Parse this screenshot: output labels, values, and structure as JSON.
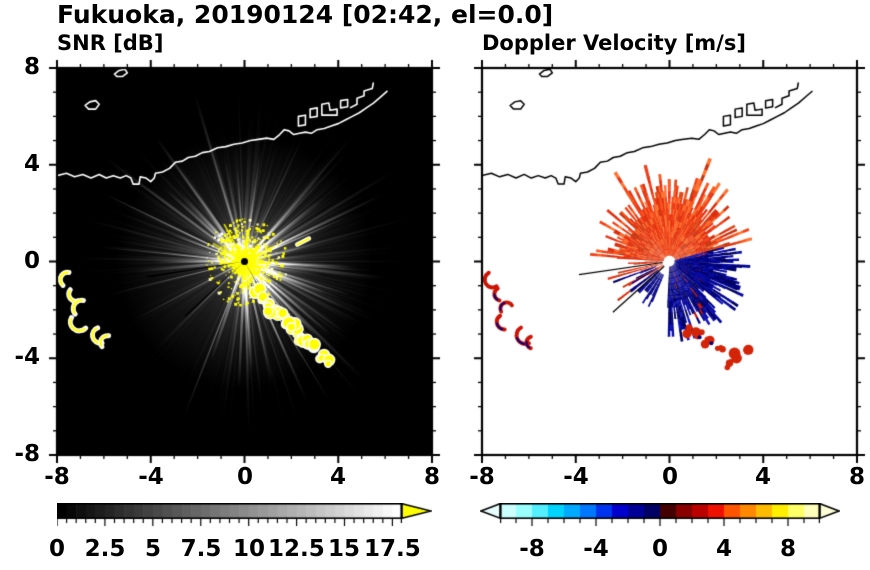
{
  "title": "Fukuoka, 20190124 [02:42, el=0.0]",
  "chart_data": [
    {
      "type": "heatmap",
      "title": "SNR [dB]",
      "xlim": [
        -8,
        8
      ],
      "ylim": [
        -8,
        8
      ],
      "xticks": [
        -8,
        -4,
        0,
        4,
        8
      ],
      "yticks": [
        8,
        4,
        0,
        -4,
        -8
      ],
      "background": "#000000",
      "colorbar": {
        "range": [
          0,
          18
        ],
        "ticks": [
          0,
          2.5,
          5,
          7.5,
          10,
          12.5,
          15,
          17.5
        ],
        "start_color": "#000000",
        "end_color": "#ffffff",
        "overflow_color": "#ffff00"
      },
      "features": {
        "radar_center": [
          0,
          0
        ],
        "glow_radius": 5.5,
        "spokes": {
          "count": 360,
          "bright_count": 70,
          "color": "#ffffff"
        },
        "core": {
          "radius": 1.8,
          "color": "#ffff00",
          "dot_count": 900
        },
        "shadow_rays": [
          {
            "az": 188,
            "len": 4.2
          },
          {
            "az": 221,
            "len": 3.4
          },
          {
            "az": 300,
            "len": 3.2
          }
        ],
        "arc_echoes": [
          [
            0.55,
            -1.15
          ],
          [
            0.85,
            -1.5
          ],
          [
            1.05,
            -1.75
          ],
          [
            1.35,
            -2.05
          ],
          [
            1.6,
            -2.2
          ],
          [
            1.9,
            -2.45
          ],
          [
            2.15,
            -2.95
          ],
          [
            2.45,
            -3.15
          ],
          [
            2.7,
            -3.3
          ],
          [
            3.0,
            -3.55
          ],
          [
            3.25,
            -3.9
          ],
          [
            3.45,
            -4.15
          ],
          [
            2.0,
            -2.7
          ],
          [
            1.15,
            -2.0
          ]
        ],
        "west_echoes": [
          [
            -7.55,
            -0.75
          ],
          [
            -7.2,
            -1.35
          ],
          [
            -6.95,
            -1.95
          ],
          [
            -7.05,
            -2.5
          ],
          [
            -6.15,
            -3.05
          ],
          [
            -5.85,
            -3.35
          ]
        ],
        "spur": [
          [
            2.25,
            0.7
          ],
          [
            2.75,
            0.95
          ]
        ]
      }
    },
    {
      "type": "heatmap",
      "title": "Doppler Velocity [m/s]",
      "xlim": [
        -8,
        8
      ],
      "ylim": [
        -8,
        8
      ],
      "xticks": [
        -8,
        -4,
        0,
        4,
        8
      ],
      "yticks": [
        8,
        4,
        0,
        -4,
        -8
      ],
      "background": "#ffffff",
      "colorbar": {
        "range": [
          -10,
          10
        ],
        "ticks": [
          -8,
          -4,
          0,
          4,
          8
        ],
        "colors": [
          "#ccffff",
          "#99ffff",
          "#55eeff",
          "#00d4ff",
          "#00aaff",
          "#0077ff",
          "#0033ee",
          "#0000cc",
          "#000099",
          "#000066",
          "#440000",
          "#880000",
          "#bb0000",
          "#ee1100",
          "#ff5500",
          "#ff8800",
          "#ffbb00",
          "#ffee00",
          "#ffff66",
          "#ffffbb"
        ],
        "under_color": "#e8ffff",
        "over_color": "#ffffd8"
      },
      "features": {
        "regions": [
          {
            "name": "outbound-red",
            "az": [
              15,
              175
            ],
            "r": [
              0.25,
              1.7
            ],
            "jitter": 1.8,
            "palette": [
              "#e63212",
              "#f14019",
              "#d92d0c",
              "#fa5a22",
              "#e0481a",
              "#c73511",
              "#ff7433"
            ]
          },
          {
            "name": "outbound-red-spikes",
            "az": [
              55,
              125
            ],
            "r": [
              0.25,
              2.3
            ],
            "jitter": 1.4,
            "sparse": 0.55,
            "palette": [
              "#e63212",
              "#f14019",
              "#fa5a22",
              "#ff7433"
            ]
          },
          {
            "name": "outbound-red-sw",
            "az": [
              176,
              216
            ],
            "r": [
              0.3,
              0.9
            ],
            "jitter": 1.9,
            "sparse": 0.4,
            "palette": [
              "#e63212",
              "#d92d0c",
              "#c73511"
            ]
          },
          {
            "name": "inbound-navy",
            "az": [
              -92,
              14
            ],
            "r": [
              0.2,
              1.5
            ],
            "jitter": 1.7,
            "palette": [
              "#000082",
              "#000899",
              "#0a0aa6",
              "#000060",
              "#1616b8",
              "#00004e"
            ],
            "speckle": "#c81400",
            "speckle_p": 0.035
          },
          {
            "name": "inbound-navy-east",
            "az": [
              -45,
              10
            ],
            "r": [
              0.3,
              2.2
            ],
            "jitter": 1.1,
            "sparse": 0.6,
            "palette": [
              "#000082",
              "#000899",
              "#0a0aa6",
              "#000060"
            ]
          },
          {
            "name": "inbound-navy-sw",
            "az": [
              198,
              246
            ],
            "r": [
              0.6,
              1.3
            ],
            "jitter": 0.8,
            "sparse": 0.6,
            "palette": [
              "#000082",
              "#000099",
              "#000060"
            ]
          }
        ],
        "fringe_blobs": [
          [
            1.7,
            -3.3
          ],
          [
            2.2,
            -3.7
          ],
          [
            2.6,
            -4.25
          ],
          [
            1.2,
            -3.05
          ],
          [
            2.9,
            -3.9
          ],
          [
            3.2,
            -3.5
          ],
          [
            0.8,
            -2.9
          ]
        ],
        "shadow_rays": [
          {
            "az": 188,
            "len": 3.9
          },
          {
            "az": 221,
            "len": 3.2
          }
        ],
        "west_echoes": [
          [
            -7.55,
            -0.75
          ],
          [
            -7.2,
            -1.35
          ],
          [
            -6.95,
            -1.95
          ],
          [
            -7.05,
            -2.5
          ],
          [
            -6.15,
            -3.05
          ],
          [
            -5.85,
            -3.35
          ]
        ],
        "center_color": "#ffffff"
      }
    }
  ],
  "coastline": {
    "color_on_dark": "#ffffff",
    "color_on_light": "#000000",
    "main": [
      [
        -8,
        3.55
      ],
      [
        -7.6,
        3.65
      ],
      [
        -7.25,
        3.5
      ],
      [
        -6.9,
        3.6
      ],
      [
        -6.55,
        3.45
      ],
      [
        -6.2,
        3.6
      ],
      [
        -5.9,
        3.45
      ],
      [
        -5.6,
        3.55
      ],
      [
        -5.3,
        3.45
      ],
      [
        -5.05,
        3.55
      ],
      [
        -4.85,
        3.45
      ],
      [
        -4.75,
        3.2
      ],
      [
        -4.5,
        3.2
      ],
      [
        -4.45,
        3.5
      ],
      [
        -4.2,
        3.45
      ],
      [
        -4.0,
        3.3
      ],
      [
        -3.85,
        3.45
      ],
      [
        -3.8,
        3.65
      ],
      [
        -3.5,
        3.7
      ],
      [
        -3.2,
        3.85
      ],
      [
        -2.95,
        4.1
      ],
      [
        -2.65,
        4.15
      ],
      [
        -2.4,
        4.3
      ],
      [
        -2.1,
        4.35
      ],
      [
        -1.8,
        4.5
      ],
      [
        -1.5,
        4.55
      ],
      [
        -1.15,
        4.7
      ],
      [
        -0.8,
        4.75
      ],
      [
        -0.45,
        4.85
      ],
      [
        -0.1,
        4.9
      ],
      [
        0.25,
        5.0
      ],
      [
        0.6,
        5.05
      ],
      [
        0.95,
        5.1
      ],
      [
        1.25,
        5.05
      ],
      [
        1.5,
        5.25
      ],
      [
        1.7,
        5.45
      ],
      [
        1.9,
        5.4
      ],
      [
        2.1,
        5.25
      ],
      [
        2.35,
        5.3
      ],
      [
        2.6,
        5.35
      ],
      [
        2.85,
        5.3
      ],
      [
        3.1,
        5.45
      ],
      [
        3.4,
        5.5
      ],
      [
        3.7,
        5.6
      ],
      [
        4.0,
        5.7
      ],
      [
        4.3,
        5.85
      ],
      [
        4.6,
        6.0
      ],
      [
        4.9,
        6.15
      ],
      [
        5.2,
        6.35
      ],
      [
        5.5,
        6.55
      ],
      [
        5.8,
        6.8
      ],
      [
        6.1,
        7.05
      ]
    ],
    "islands": [
      [
        [
          -6.8,
          6.45
        ],
        [
          -6.6,
          6.6
        ],
        [
          -6.35,
          6.65
        ],
        [
          -6.2,
          6.5
        ],
        [
          -6.35,
          6.3
        ],
        [
          -6.65,
          6.3
        ]
      ],
      [
        [
          -5.55,
          7.75
        ],
        [
          -5.35,
          7.9
        ],
        [
          -5.1,
          7.95
        ],
        [
          -5.0,
          7.8
        ],
        [
          -5.2,
          7.65
        ],
        [
          -5.45,
          7.65
        ]
      ]
    ],
    "harbor": [
      {
        "closed": true,
        "pts": [
          [
            2.3,
            5.6
          ],
          [
            2.3,
            6.0
          ],
          [
            2.6,
            6.05
          ],
          [
            2.6,
            5.65
          ]
        ]
      },
      {
        "closed": true,
        "pts": [
          [
            2.8,
            5.95
          ],
          [
            2.8,
            6.3
          ],
          [
            3.1,
            6.35
          ],
          [
            3.1,
            6.0
          ]
        ]
      },
      {
        "closed": true,
        "pts": [
          [
            3.3,
            6.05
          ],
          [
            3.3,
            6.5
          ],
          [
            3.6,
            6.55
          ],
          [
            3.65,
            6.25
          ],
          [
            3.95,
            6.3
          ],
          [
            3.95,
            6.05
          ]
        ]
      },
      {
        "closed": true,
        "pts": [
          [
            4.1,
            6.35
          ],
          [
            4.1,
            6.65
          ],
          [
            4.4,
            6.7
          ],
          [
            4.4,
            6.4
          ]
        ]
      },
      {
        "closed": false,
        "pts": [
          [
            4.5,
            6.35
          ],
          [
            4.8,
            6.5
          ],
          [
            4.8,
            6.75
          ],
          [
            5.1,
            6.85
          ],
          [
            5.1,
            7.05
          ],
          [
            5.45,
            7.15
          ],
          [
            5.5,
            7.4
          ]
        ]
      }
    ]
  }
}
